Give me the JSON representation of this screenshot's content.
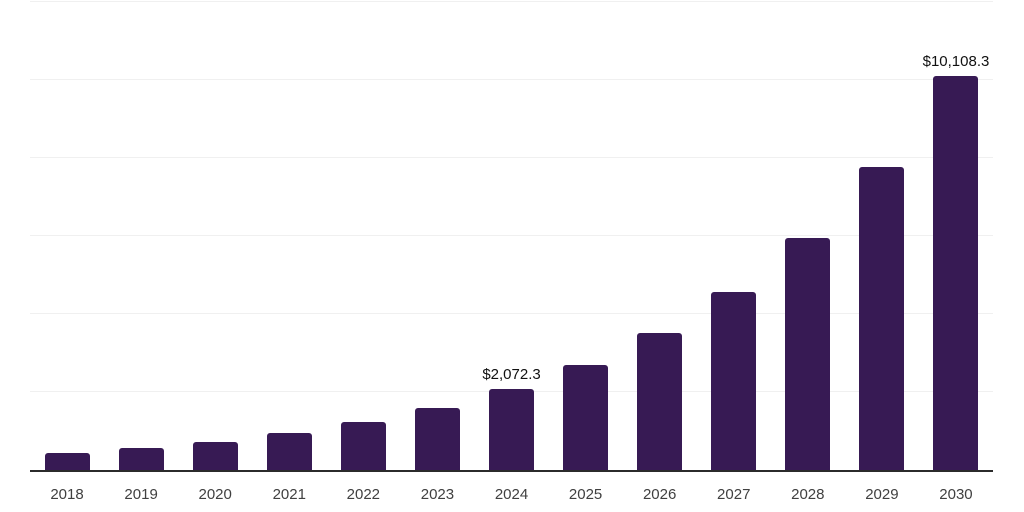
{
  "chart_data": {
    "type": "bar",
    "title": "",
    "xlabel": "",
    "ylabel": "",
    "categories": [
      "2018",
      "2019",
      "2020",
      "2021",
      "2022",
      "2023",
      "2024",
      "2025",
      "2026",
      "2027",
      "2028",
      "2029",
      "2030"
    ],
    "values": [
      425,
      553,
      721,
      938,
      1222,
      1591,
      2072.3,
      2700,
      3515,
      4577,
      5960,
      7762,
      10108.3
    ],
    "data_labels": [
      "",
      "",
      "",
      "",
      "",
      "",
      "$2,072.3",
      "",
      "",
      "",
      "",
      "",
      "$10,108.3"
    ],
    "ylim": [
      0,
      12000
    ],
    "gridline_step": 2000,
    "grid": true,
    "legend_position": "none",
    "colors": {
      "bar": "#371A54",
      "axis_line": "#2b2b2b",
      "gridline": "#f0f0f0",
      "tick_label": "#404040",
      "data_label": "#111111",
      "background": "#ffffff"
    }
  }
}
